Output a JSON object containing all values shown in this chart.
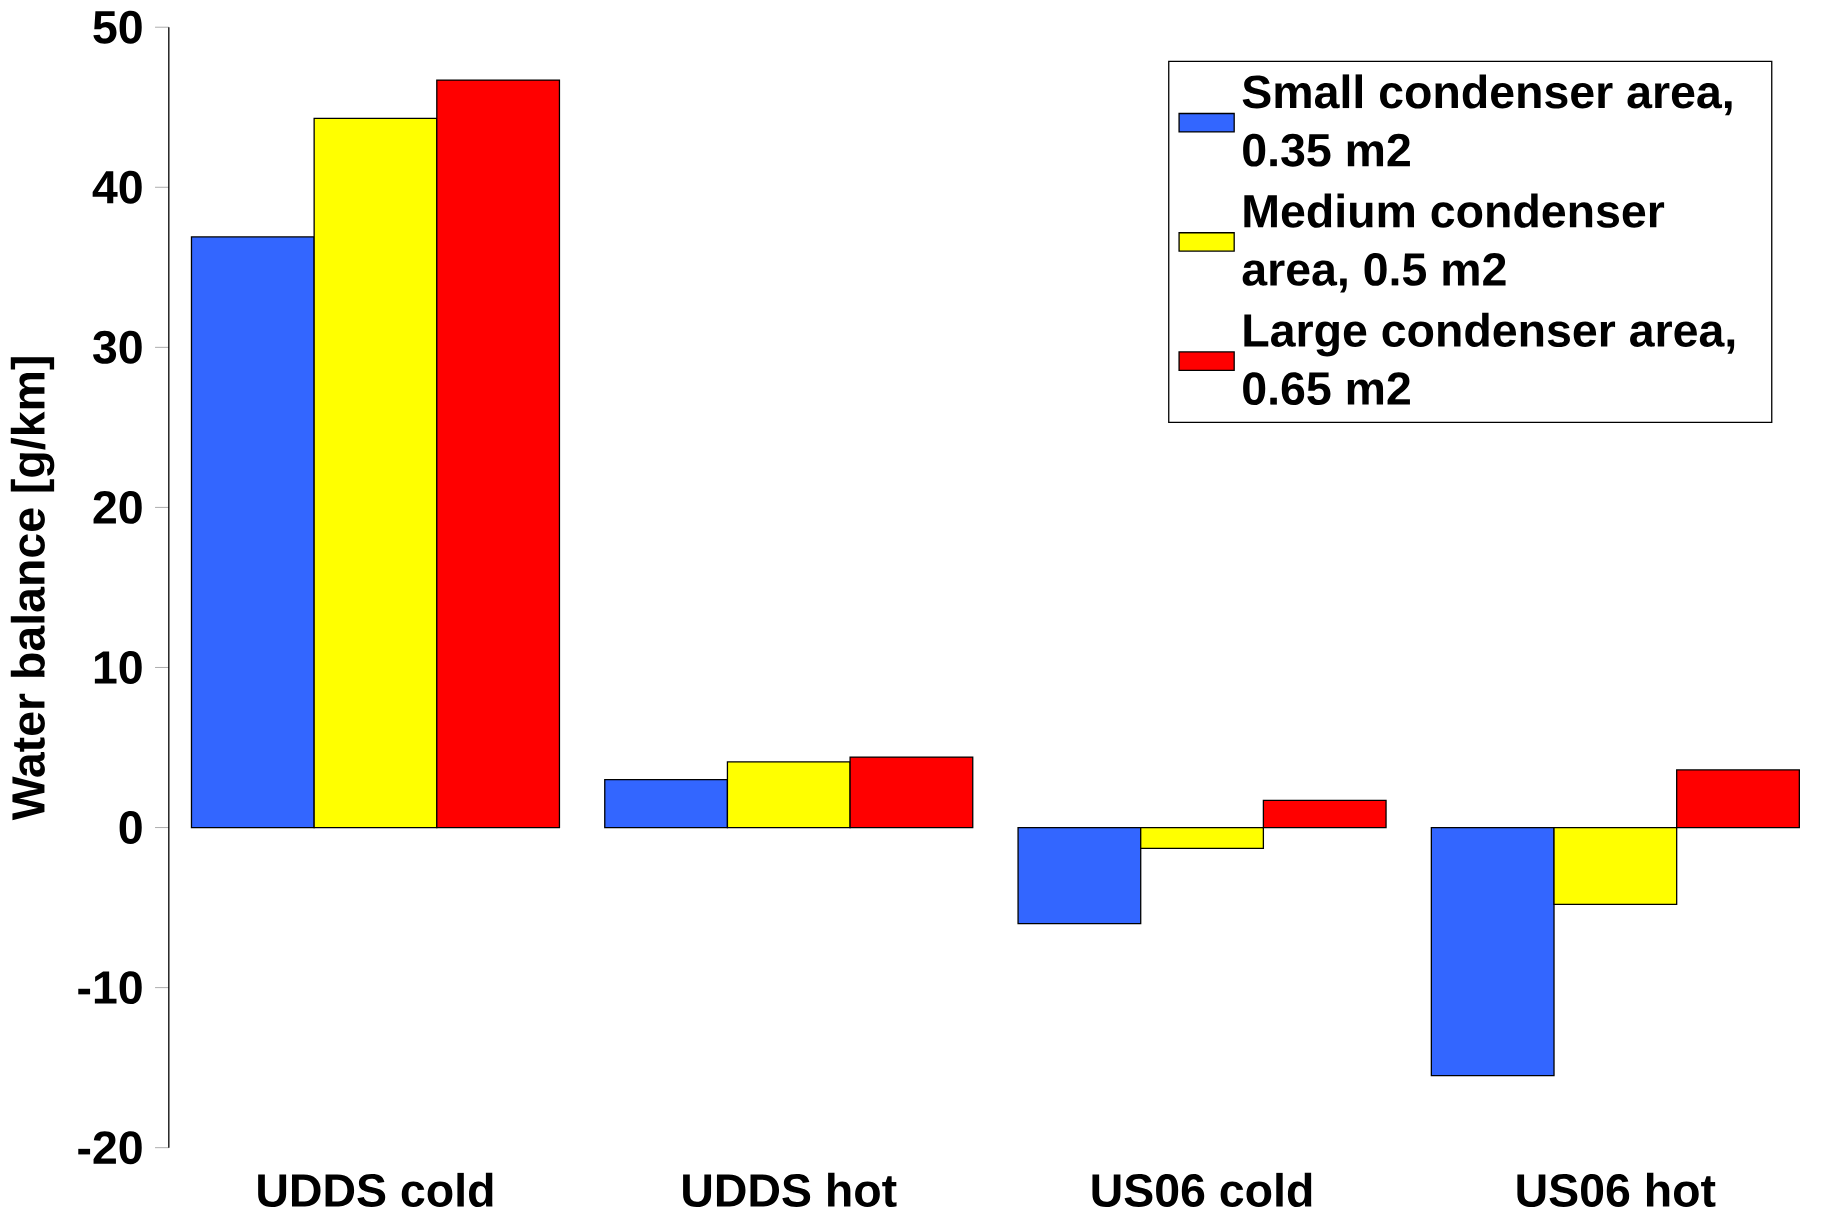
{
  "chart_data": {
    "type": "bar",
    "ylabel": "Water balance [g/km]",
    "categories": [
      "UDDS cold",
      "UDDS hot",
      "US06 cold",
      "US06 hot"
    ],
    "series": [
      {
        "name": "Small condenser area, 0.35 m2",
        "color": "#3366ff",
        "values": [
          36.9,
          3.0,
          -6.0,
          -15.5
        ]
      },
      {
        "name": "Medium condenser area, 0.5 m2",
        "color": "#ffff00",
        "values": [
          44.3,
          4.1,
          -1.3,
          -4.8
        ]
      },
      {
        "name": "Large condenser area, 0.65 m2",
        "color": "#ff0000",
        "values": [
          46.7,
          4.4,
          1.7,
          3.6
        ]
      }
    ],
    "ylim": [
      -20,
      50
    ],
    "yticks": [
      -20,
      -10,
      0,
      10,
      20,
      30,
      40,
      50
    ],
    "grid": false,
    "legend": "top right"
  }
}
